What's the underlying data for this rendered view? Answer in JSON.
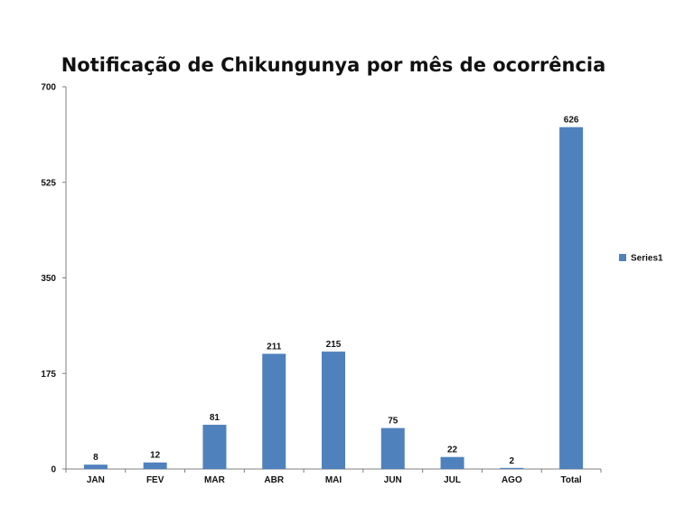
{
  "chart_data": {
    "type": "bar",
    "title": "Notificação de Chikungunya por mês de ocorrência",
    "categories": [
      "JAN",
      "FEV",
      "MAR",
      "ABR",
      "MAI",
      "JUN",
      "JUL",
      "AGO",
      "Total"
    ],
    "series": [
      {
        "name": "Series1",
        "values": [
          8,
          12,
          81,
          211,
          215,
          75,
          22,
          2,
          626
        ]
      }
    ],
    "ylim": [
      0,
      700
    ],
    "yticks": [
      0,
      175,
      350,
      525,
      700
    ],
    "grid": false,
    "legend": "right",
    "bar_color": "#4F81BD"
  }
}
